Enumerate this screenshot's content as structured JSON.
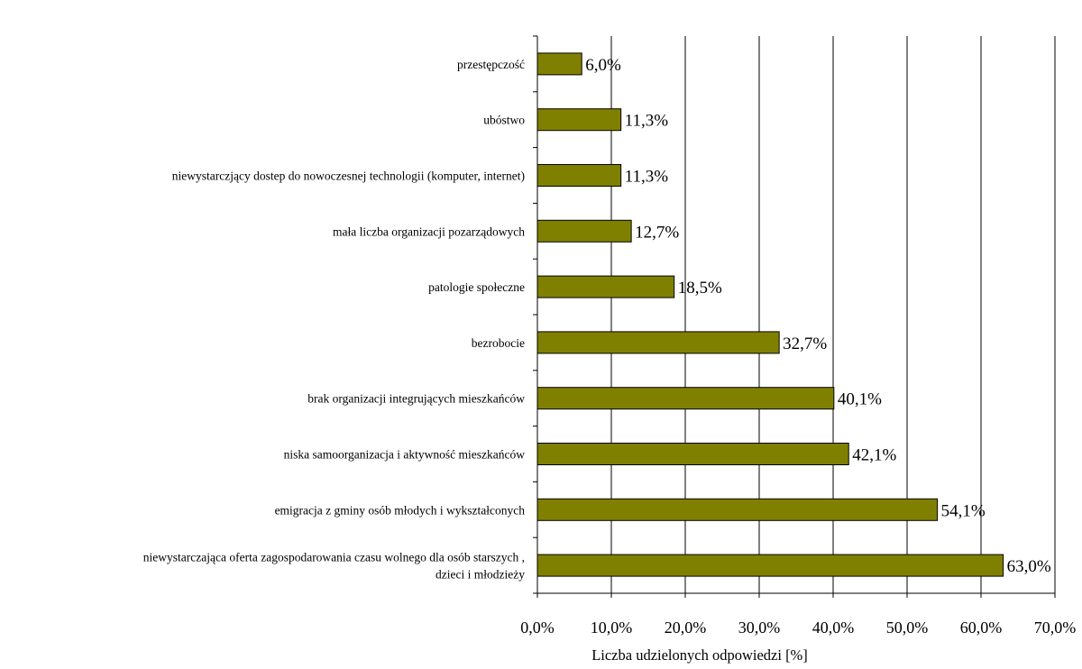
{
  "chart_data": {
    "type": "bar",
    "orientation": "horizontal",
    "xlabel": "Liczba udzielonych odpowiedzi [%]",
    "xlim": [
      0,
      70
    ],
    "xticks": [
      0,
      10,
      20,
      30,
      40,
      50,
      60,
      70
    ],
    "xtick_labels": [
      "0,0%",
      "10,0%",
      "20,0%",
      "30,0%",
      "40,0%",
      "50,0%",
      "60,0%",
      "70,0%"
    ],
    "grid": true,
    "legend": false,
    "bar_color": "#808000",
    "categories": [
      "przestępczość",
      "ubóstwo",
      "niewystarczjący dostep do nowoczesnej technologii (komputer, internet)",
      "mała liczba organizacji pozarządowych",
      "patologie społeczne",
      "bezrobocie",
      "brak organizacji integrujących mieszkańców",
      "niska samoorganizacja i aktywność mieszkańców",
      "emigracja z gminy osób młodych i wykształconych",
      "niewystarczająca oferta zagospodarowania czasu wolnego dla osób starszych , dzieci i młodzieży"
    ],
    "category_lines": [
      [
        "przestępczość"
      ],
      [
        "ubóstwo"
      ],
      [
        "niewystarczjący dostep do nowoczesnej technologii (komputer, internet)"
      ],
      [
        "mała liczba organizacji pozarządowych"
      ],
      [
        "patologie społeczne"
      ],
      [
        "bezrobocie"
      ],
      [
        "brak organizacji integrujących mieszkańców"
      ],
      [
        "niska samoorganizacja i aktywność mieszkańców"
      ],
      [
        "emigracja z gminy osób młodych i wykształconych"
      ],
      [
        "niewystarczająca oferta zagospodarowania czasu wolnego dla osób starszych ,",
        "dzieci i młodzieży"
      ]
    ],
    "values": [
      6.0,
      11.3,
      11.3,
      12.7,
      18.5,
      32.7,
      40.1,
      42.1,
      54.1,
      63.0
    ],
    "value_labels": [
      "6,0%",
      "11,3%",
      "11,3%",
      "12,7%",
      "18,5%",
      "32,7%",
      "40,1%",
      "42,1%",
      "54,1%",
      "63,0%"
    ]
  }
}
